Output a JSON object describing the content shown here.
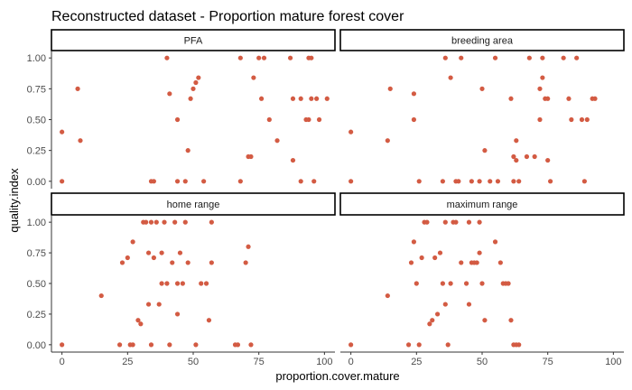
{
  "chart_data": {
    "type": "scatter",
    "title": "Reconstructed dataset - Proportion mature forest cover",
    "xlabel": "proportion.cover.mature",
    "ylabel": "quality.index",
    "xlim": [
      -4,
      104
    ],
    "ylim": [
      -0.06,
      1.06
    ],
    "x_ticks": [
      0,
      25,
      50,
      75,
      100
    ],
    "y_ticks": [
      0.0,
      0.25,
      0.5,
      0.75,
      1.0
    ],
    "x_tick_labels": [
      "0",
      "25",
      "50",
      "75",
      "100"
    ],
    "y_tick_labels": [
      "0.00",
      "0.25",
      "0.50",
      "0.75",
      "1.00"
    ],
    "grid": false,
    "point_color": "#d35b43",
    "panels": [
      {
        "name": "PFA",
        "points": [
          [
            0,
            0.4
          ],
          [
            0,
            0
          ],
          [
            6,
            0.75
          ],
          [
            7,
            0.33
          ],
          [
            34,
            0
          ],
          [
            35,
            0
          ],
          [
            40,
            1
          ],
          [
            41,
            0.71
          ],
          [
            44,
            0.5
          ],
          [
            44,
            0
          ],
          [
            47,
            0
          ],
          [
            48,
            0.25
          ],
          [
            49,
            0.67
          ],
          [
            50,
            0.75
          ],
          [
            51,
            0.8
          ],
          [
            52,
            0.84
          ],
          [
            54,
            0
          ],
          [
            68,
            1
          ],
          [
            68,
            0
          ],
          [
            71,
            0.2
          ],
          [
            72,
            0.2
          ],
          [
            73,
            0.84
          ],
          [
            75,
            1
          ],
          [
            76,
            0.67
          ],
          [
            77,
            1
          ],
          [
            79,
            0.5
          ],
          [
            82,
            0.33
          ],
          [
            87,
            1
          ],
          [
            88,
            0.67
          ],
          [
            88,
            0.17
          ],
          [
            91,
            0.67
          ],
          [
            91,
            0
          ],
          [
            93,
            0.5
          ],
          [
            94,
            1
          ],
          [
            94,
            0.5
          ],
          [
            95,
            1
          ],
          [
            95,
            0.67
          ],
          [
            96,
            0
          ],
          [
            97,
            0.67
          ],
          [
            98,
            0.5
          ],
          [
            101,
            0.67
          ]
        ]
      },
      {
        "name": "breeding area",
        "points": [
          [
            0,
            0.4
          ],
          [
            0,
            0
          ],
          [
            14,
            0.33
          ],
          [
            15,
            0.75
          ],
          [
            24,
            0.5
          ],
          [
            24,
            0.71
          ],
          [
            26,
            0
          ],
          [
            35,
            0
          ],
          [
            36,
            1
          ],
          [
            38,
            0.84
          ],
          [
            40,
            0
          ],
          [
            41,
            0
          ],
          [
            42,
            1
          ],
          [
            46,
            0
          ],
          [
            49,
            0
          ],
          [
            50,
            0.75
          ],
          [
            51,
            0.25
          ],
          [
            53,
            0
          ],
          [
            55,
            1
          ],
          [
            56,
            0
          ],
          [
            61,
            0.67
          ],
          [
            62,
            0
          ],
          [
            62,
            0.2
          ],
          [
            63,
            0.33
          ],
          [
            63,
            0.17
          ],
          [
            64,
            0
          ],
          [
            67,
            0.2
          ],
          [
            68,
            1
          ],
          [
            70,
            0.2
          ],
          [
            72,
            0.5
          ],
          [
            72,
            0.75
          ],
          [
            73,
            1
          ],
          [
            73,
            0.84
          ],
          [
            74,
            0.67
          ],
          [
            75,
            0.67
          ],
          [
            75,
            0.17
          ],
          [
            76,
            0
          ],
          [
            81,
            1
          ],
          [
            83,
            0.67
          ],
          [
            84,
            0.5
          ],
          [
            86,
            1
          ],
          [
            88,
            0.5
          ],
          [
            89,
            0
          ],
          [
            90,
            0.5
          ],
          [
            92,
            0.67
          ],
          [
            93,
            0.67
          ]
        ]
      },
      {
        "name": "home range",
        "points": [
          [
            0,
            0
          ],
          [
            15,
            0.4
          ],
          [
            22,
            0
          ],
          [
            23,
            0.67
          ],
          [
            25,
            0.71
          ],
          [
            26,
            0
          ],
          [
            27,
            0
          ],
          [
            27,
            0.84
          ],
          [
            29,
            0.2
          ],
          [
            30,
            0.17
          ],
          [
            31,
            1
          ],
          [
            32,
            1
          ],
          [
            33,
            0.75
          ],
          [
            33,
            0.33
          ],
          [
            34,
            1
          ],
          [
            34,
            0
          ],
          [
            35,
            0.71
          ],
          [
            36,
            1
          ],
          [
            37,
            0.33
          ],
          [
            38,
            0.75
          ],
          [
            38,
            0.5
          ],
          [
            39,
            1
          ],
          [
            40,
            0.5
          ],
          [
            41,
            0
          ],
          [
            42,
            0.67
          ],
          [
            43,
            1
          ],
          [
            44,
            0.25
          ],
          [
            44,
            0.5
          ],
          [
            45,
            0.75
          ],
          [
            46,
            0.5
          ],
          [
            47,
            1
          ],
          [
            48,
            0.67
          ],
          [
            51,
            0
          ],
          [
            53,
            0.5
          ],
          [
            55,
            0.5
          ],
          [
            56,
            0.2
          ],
          [
            57,
            0.67
          ],
          [
            57,
            1
          ],
          [
            66,
            0
          ],
          [
            67,
            0
          ],
          [
            70,
            0.67
          ],
          [
            71,
            0.8
          ],
          [
            72,
            0
          ]
        ]
      },
      {
        "name": "maximum range",
        "points": [
          [
            0,
            0
          ],
          [
            14,
            0.4
          ],
          [
            22,
            0
          ],
          [
            23,
            0.67
          ],
          [
            24,
            0.84
          ],
          [
            25,
            0.5
          ],
          [
            26,
            0
          ],
          [
            27,
            0.71
          ],
          [
            28,
            1
          ],
          [
            29,
            1
          ],
          [
            30,
            0.17
          ],
          [
            31,
            0.2
          ],
          [
            32,
            0.71
          ],
          [
            33,
            0.25
          ],
          [
            34,
            0.75
          ],
          [
            35,
            0.5
          ],
          [
            36,
            1
          ],
          [
            36,
            0.33
          ],
          [
            37,
            0
          ],
          [
            38,
            0.5
          ],
          [
            39,
            1
          ],
          [
            40,
            1
          ],
          [
            42,
            0.67
          ],
          [
            44,
            0.5
          ],
          [
            45,
            1
          ],
          [
            45,
            0.33
          ],
          [
            46,
            0.67
          ],
          [
            47,
            0.67
          ],
          [
            48,
            0.67
          ],
          [
            49,
            1
          ],
          [
            49,
            0.75
          ],
          [
            50,
            0.5
          ],
          [
            51,
            0.2
          ],
          [
            55,
            0.84
          ],
          [
            57,
            0.67
          ],
          [
            58,
            0.5
          ],
          [
            59,
            0.5
          ],
          [
            60,
            0.5
          ],
          [
            61,
            0.2
          ],
          [
            62,
            0
          ],
          [
            63,
            0
          ],
          [
            64,
            0
          ]
        ]
      }
    ]
  }
}
